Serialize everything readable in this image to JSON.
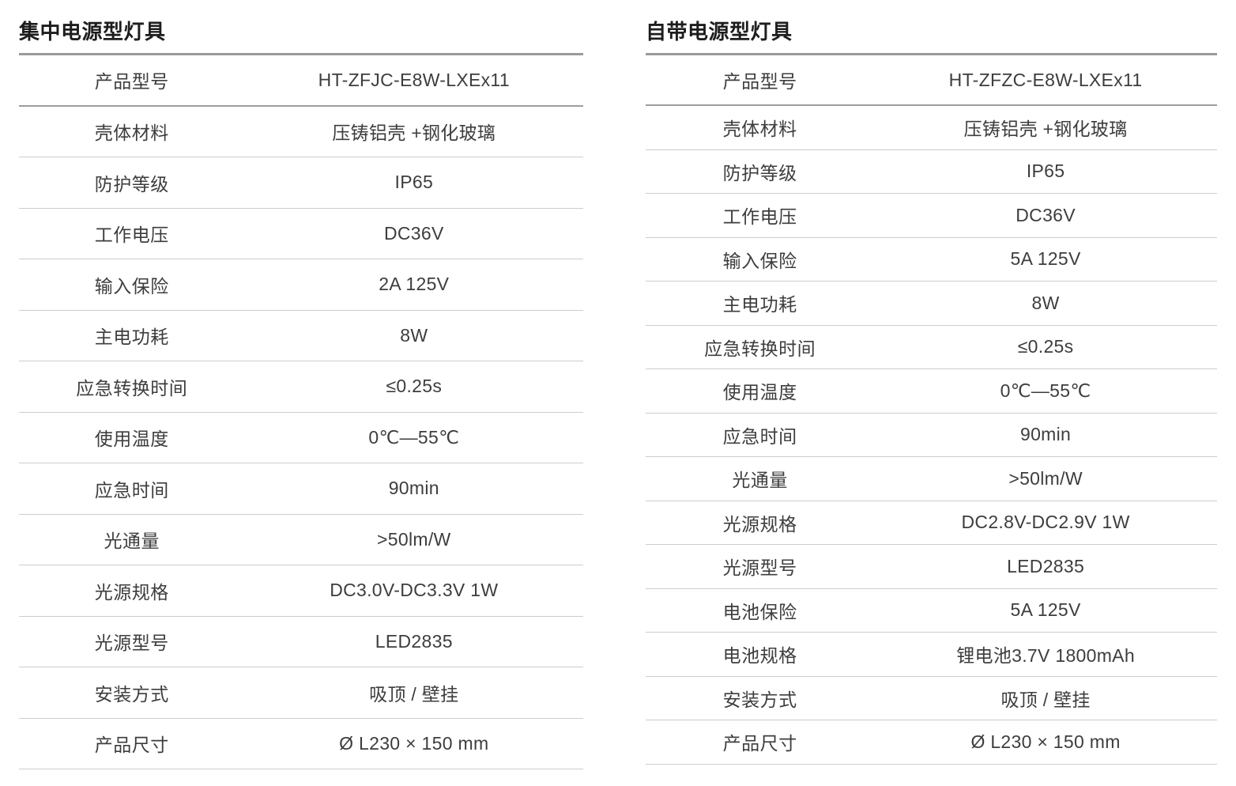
{
  "page": {
    "background_color": "#ffffff",
    "text_color": "#3d3d3d",
    "rule_color_strong": "#9a9a9a",
    "rule_color_light": "#cdcdcd"
  },
  "tables": [
    {
      "title": "集中电源型灯具",
      "rows": [
        {
          "label": "产品型号",
          "value": "HT-ZFJC-E8W-LXEx11"
        },
        {
          "label": "壳体材料",
          "value": "压铸铝壳 +钢化玻璃"
        },
        {
          "label": "防护等级",
          "value": "IP65"
        },
        {
          "label": "工作电压",
          "value": "DC36V"
        },
        {
          "label": "输入保险",
          "value": "2A 125V"
        },
        {
          "label": "主电功耗",
          "value": "8W"
        },
        {
          "label": "应急转换时间",
          "value": "≤0.25s"
        },
        {
          "label": "使用温度",
          "value": "0℃—55℃"
        },
        {
          "label": "应急时间",
          "value": "90min"
        },
        {
          "label": "光通量",
          "value": ">50lm/W"
        },
        {
          "label": "光源规格",
          "value": "DC3.0V-DC3.3V 1W"
        },
        {
          "label": "光源型号",
          "value": "LED2835"
        },
        {
          "label": "安装方式",
          "value": "吸顶 / 壁挂"
        },
        {
          "label": "产品尺寸",
          "value": "Ø L230 × 150 mm"
        }
      ]
    },
    {
      "title": "自带电源型灯具",
      "rows": [
        {
          "label": "产品型号",
          "value": "HT-ZFZC-E8W-LXEx11"
        },
        {
          "label": "壳体材料",
          "value": "压铸铝壳 +钢化玻璃"
        },
        {
          "label": "防护等级",
          "value": "IP65"
        },
        {
          "label": "工作电压",
          "value": "DC36V"
        },
        {
          "label": "输入保险",
          "value": "5A 125V"
        },
        {
          "label": "主电功耗",
          "value": "8W"
        },
        {
          "label": "应急转换时间",
          "value": "≤0.25s"
        },
        {
          "label": "使用温度",
          "value": "0℃—55℃"
        },
        {
          "label": "应急时间",
          "value": "90min"
        },
        {
          "label": "光通量",
          "value": ">50lm/W"
        },
        {
          "label": "光源规格",
          "value": "DC2.8V-DC2.9V 1W"
        },
        {
          "label": "光源型号",
          "value": "LED2835"
        },
        {
          "label": "电池保险",
          "value": "5A 125V"
        },
        {
          "label": "电池规格",
          "value": "锂电池3.7V 1800mAh"
        },
        {
          "label": "安装方式",
          "value": "吸顶 / 壁挂"
        },
        {
          "label": "产品尺寸",
          "value": "Ø L230 × 150 mm"
        }
      ]
    }
  ]
}
